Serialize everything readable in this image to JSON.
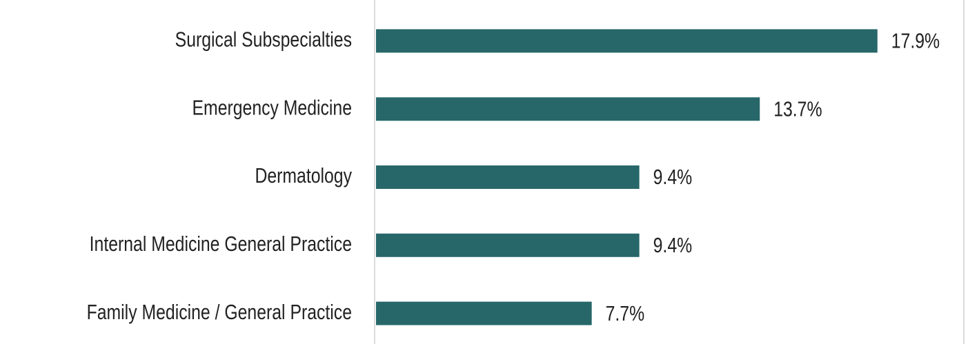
{
  "chart_data": {
    "type": "barh",
    "categories": [
      "Surgical Subspecialties",
      "Emergency Medicine",
      "Dermatology",
      "Internal Medicine General Practice",
      "Family Medicine / General Practice"
    ],
    "values": [
      17.9,
      13.7,
      9.4,
      9.4,
      7.7
    ],
    "value_labels": [
      "17.9%",
      "13.7%",
      "9.4%",
      "9.4%",
      "7.7%"
    ],
    "color": "#276769",
    "xlim": [
      0,
      20
    ]
  }
}
